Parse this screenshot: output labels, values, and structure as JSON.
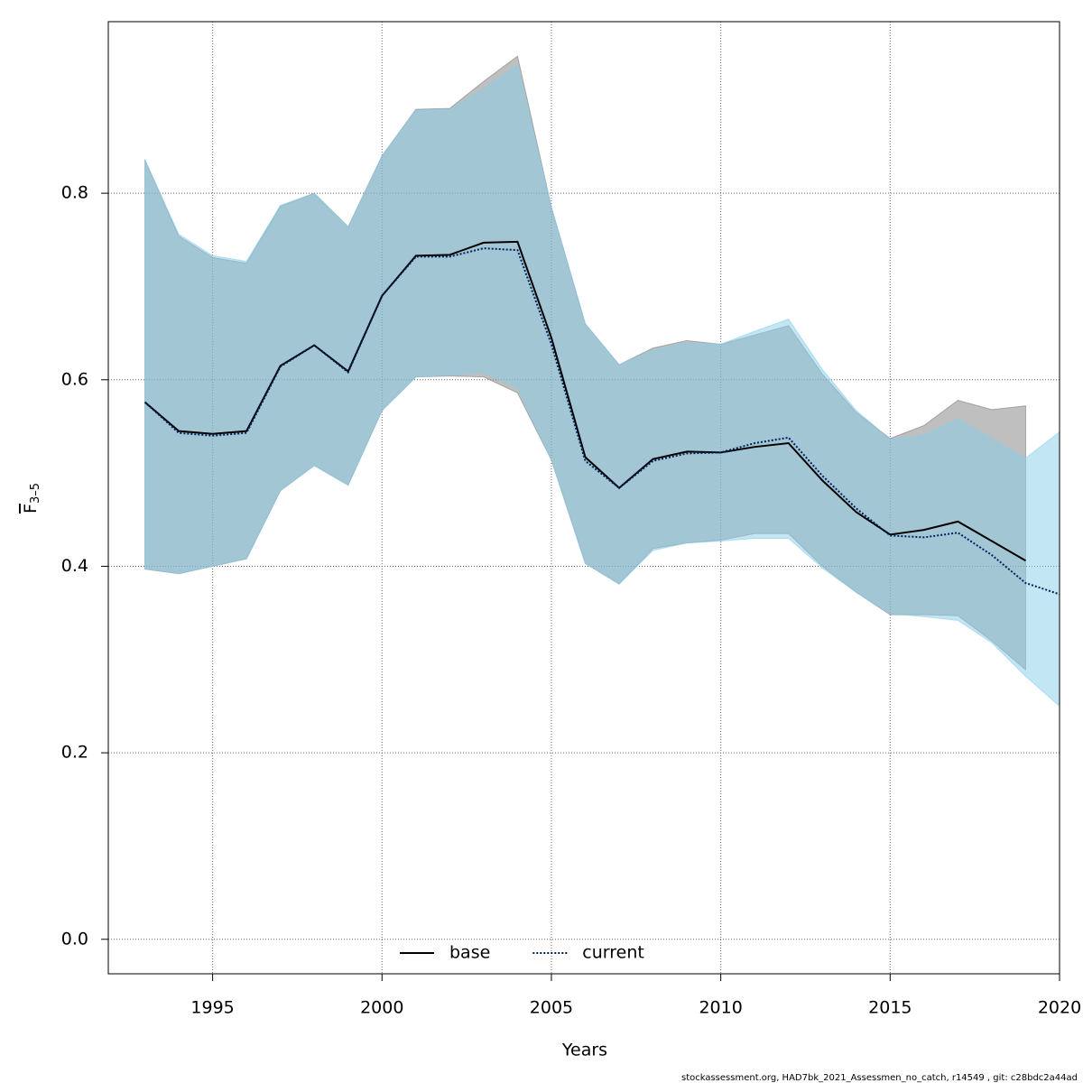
{
  "chart_data": {
    "type": "line",
    "xlabel": "Years",
    "ylabel": "F",
    "ylabel_sub": "3–5",
    "footnote": "stockassessment.org, HAD7bk_2021_Assessmen_no_catch, r14549 , git: c28bdc2a44ad",
    "xlim": [
      1991.92,
      2020
    ],
    "ylim": [
      -0.037,
      0.984
    ],
    "xticks": [
      1995,
      2000,
      2005,
      2010,
      2015,
      2020
    ],
    "yticks": [
      {
        "value": 0,
        "label": "0.0"
      },
      0.2,
      0.4,
      0.6,
      0.8
    ],
    "grid": true,
    "legend": "bottom",
    "series": [
      {
        "name": "base",
        "color": "#000000",
        "band_color": "#808080",
        "linestyle": "solid",
        "x": [
          1993,
          1994,
          1995,
          1996,
          1997,
          1998,
          1999,
          2000,
          2001,
          2002,
          2003,
          2004,
          2005,
          2006,
          2007,
          2008,
          2009,
          2010,
          2011,
          2012,
          2013,
          2014,
          2015,
          2016,
          2017,
          2018,
          2019
        ],
        "values": [
          0.576,
          0.545,
          0.542,
          0.545,
          0.615,
          0.637,
          0.609,
          0.69,
          0.733,
          0.734,
          0.747,
          0.748,
          0.645,
          0.517,
          0.484,
          0.515,
          0.523,
          0.522,
          0.528,
          0.532,
          0.492,
          0.458,
          0.434,
          0.439,
          0.448,
          0.427,
          0.406
        ],
        "upper": [
          0.836,
          0.754,
          0.731,
          0.725,
          0.786,
          0.8,
          0.764,
          0.84,
          0.89,
          0.891,
          0.92,
          0.947,
          0.785,
          0.66,
          0.616,
          0.634,
          0.642,
          0.638,
          0.648,
          0.658,
          0.606,
          0.565,
          0.537,
          0.551,
          0.578,
          0.568,
          0.572
        ],
        "lower": [
          0.397,
          0.392,
          0.4,
          0.408,
          0.481,
          0.508,
          0.487,
          0.567,
          0.603,
          0.604,
          0.603,
          0.586,
          0.514,
          0.403,
          0.381,
          0.419,
          0.425,
          0.428,
          0.435,
          0.435,
          0.4,
          0.372,
          0.348,
          0.348,
          0.347,
          0.32,
          0.289
        ]
      },
      {
        "name": "current",
        "color": "#00205a",
        "band_color": "#87ceeb",
        "linestyle": "dotted",
        "x": [
          1993,
          1994,
          1995,
          1996,
          1997,
          1998,
          1999,
          2000,
          2001,
          2002,
          2003,
          2004,
          2005,
          2006,
          2007,
          2008,
          2009,
          2010,
          2011,
          2012,
          2013,
          2014,
          2015,
          2016,
          2017,
          2018,
          2019,
          2020
        ],
        "values": [
          0.576,
          0.543,
          0.54,
          0.543,
          0.614,
          0.637,
          0.608,
          0.69,
          0.732,
          0.732,
          0.741,
          0.739,
          0.638,
          0.513,
          0.484,
          0.513,
          0.521,
          0.522,
          0.532,
          0.538,
          0.497,
          0.462,
          0.433,
          0.431,
          0.436,
          0.412,
          0.382,
          0.37
        ],
        "upper": [
          0.836,
          0.756,
          0.733,
          0.727,
          0.787,
          0.8,
          0.764,
          0.84,
          0.889,
          0.89,
          0.912,
          0.938,
          0.785,
          0.66,
          0.616,
          0.632,
          0.64,
          0.638,
          0.652,
          0.665,
          0.611,
          0.567,
          0.536,
          0.541,
          0.558,
          0.537,
          0.516,
          0.544
        ],
        "lower": [
          0.397,
          0.392,
          0.4,
          0.408,
          0.481,
          0.508,
          0.487,
          0.567,
          0.603,
          0.605,
          0.608,
          0.591,
          0.514,
          0.403,
          0.381,
          0.417,
          0.425,
          0.427,
          0.43,
          0.43,
          0.398,
          0.372,
          0.349,
          0.346,
          0.342,
          0.318,
          0.282,
          0.25
        ]
      }
    ]
  }
}
